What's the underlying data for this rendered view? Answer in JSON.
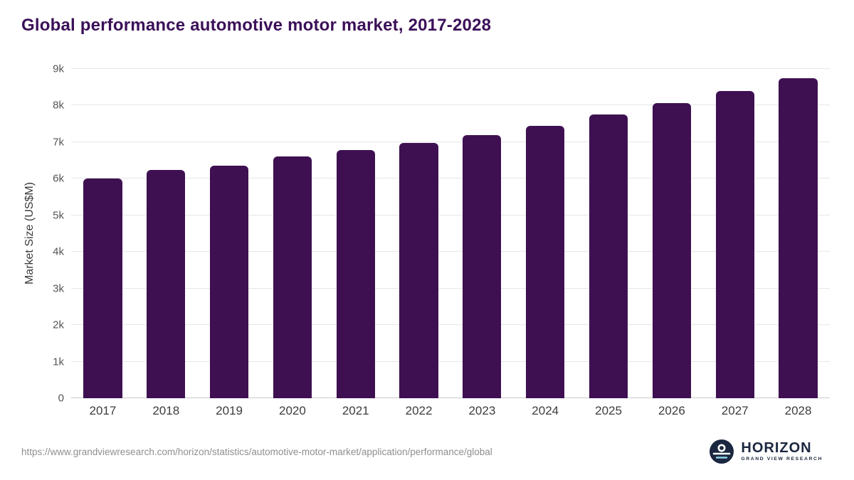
{
  "title": "Global performance automotive motor market, 2017-2028",
  "chart_data": {
    "type": "bar",
    "title": "Global performance automotive motor market, 2017-2028",
    "categories": [
      "2017",
      "2018",
      "2019",
      "2020",
      "2021",
      "2022",
      "2023",
      "2024",
      "2025",
      "2026",
      "2027",
      "2028"
    ],
    "values": [
      6010,
      6240,
      6350,
      6600,
      6780,
      6970,
      7190,
      7450,
      7750,
      8070,
      8390,
      8750
    ],
    "xlabel": "",
    "ylabel": "Market Size (US$M)",
    "ylim": [
      0,
      9000
    ],
    "yticks": [
      {
        "value": 0,
        "label": "0"
      },
      {
        "value": 1000,
        "label": "1k"
      },
      {
        "value": 2000,
        "label": "2k"
      },
      {
        "value": 3000,
        "label": "3k"
      },
      {
        "value": 4000,
        "label": "4k"
      },
      {
        "value": 5000,
        "label": "5k"
      },
      {
        "value": 6000,
        "label": "6k"
      },
      {
        "value": 7000,
        "label": "7k"
      },
      {
        "value": 8000,
        "label": "8k"
      },
      {
        "value": 9000,
        "label": "9k"
      }
    ],
    "bar_color": "#3e1052",
    "grid": "horizontal",
    "legend": "none"
  },
  "footer": {
    "source_url": "https://www.grandviewresearch.com/horizon/statistics/automotive-motor-market/application/performance/global",
    "logo": {
      "brand": "HORIZON",
      "sub": "GRAND VIEW RESEARCH"
    }
  },
  "colors": {
    "title": "#3b1058",
    "bar": "#3e1052",
    "gridline": "#e6e6e6",
    "axis_text": "#555555",
    "footer_text": "#8f8f8f",
    "logo_navy": "#1b2740"
  }
}
